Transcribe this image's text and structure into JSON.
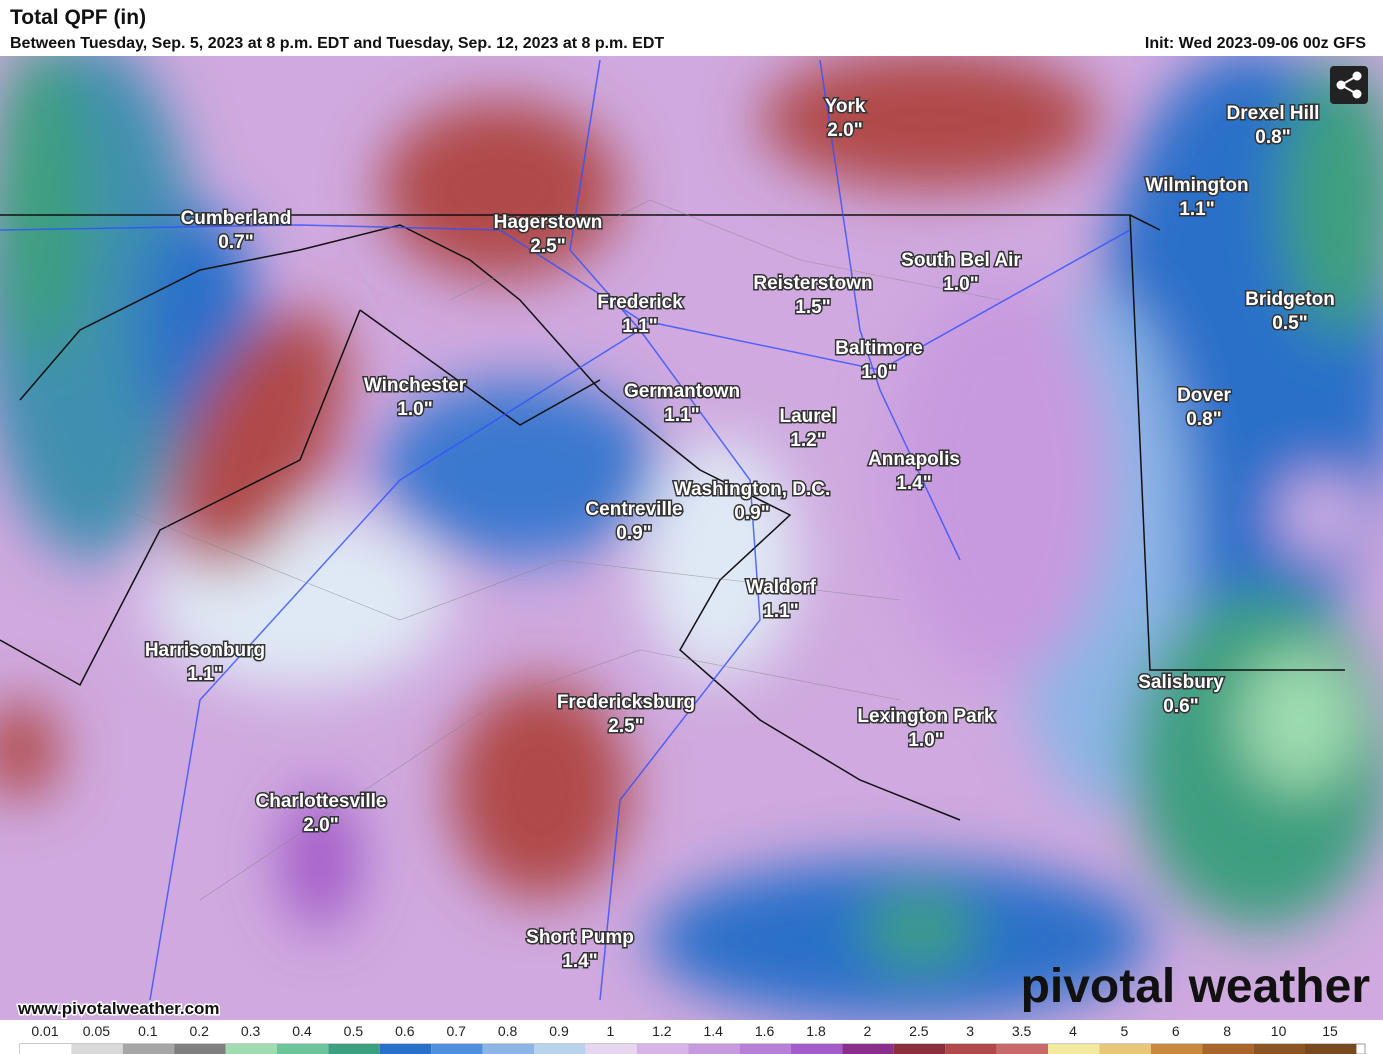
{
  "header": {
    "title": "Total QPF (in)",
    "subtitle": "Between Tuesday, Sep. 5, 2023 at 8 p.m. EDT and Tuesday, Sep. 12, 2023 at 8 p.m. EDT",
    "init": "Init: Wed 2023-09-06 00z GFS"
  },
  "cities": [
    {
      "name": "York",
      "value": "2.0\""
    },
    {
      "name": "Drexel Hill",
      "value": "0.8\""
    },
    {
      "name": "Hagerstown",
      "value": "2.5\""
    },
    {
      "name": "Cumberland",
      "value": "0.7\""
    },
    {
      "name": "Wilmington",
      "value": "1.1\""
    },
    {
      "name": "South Bel Air",
      "value": "1.0\""
    },
    {
      "name": "Reisterstown",
      "value": "1.5\""
    },
    {
      "name": "Frederick",
      "value": "1.1\""
    },
    {
      "name": "Bridgeton",
      "value": "0.5\""
    },
    {
      "name": "Baltimore",
      "value": "1.0\""
    },
    {
      "name": "Winchester",
      "value": "1.0\""
    },
    {
      "name": "Germantown",
      "value": "1.1\""
    },
    {
      "name": "Dover",
      "value": "0.8\""
    },
    {
      "name": "Laurel",
      "value": "1.2\""
    },
    {
      "name": "Annapolis",
      "value": "1.4\""
    },
    {
      "name": "Washington, D.C.",
      "value": "0.9\""
    },
    {
      "name": "Centreville",
      "value": "0.9\""
    },
    {
      "name": "Waldorf",
      "value": "1.1\""
    },
    {
      "name": "Harrisonburg",
      "value": "1.1\""
    },
    {
      "name": "Salisbury",
      "value": "0.6\""
    },
    {
      "name": "Fredericksburg",
      "value": "2.5\""
    },
    {
      "name": "Lexington Park",
      "value": "1.0\""
    },
    {
      "name": "Charlottesville",
      "value": "2.0\""
    },
    {
      "name": "Short Pump",
      "value": "1.4\""
    }
  ],
  "watermark": "pivotal weather",
  "url": "www.pivotalweather.com",
  "legend": {
    "ticks": [
      "0.01",
      "0.05",
      "0.1",
      "0.2",
      "0.3",
      "0.4",
      "0.5",
      "0.6",
      "0.7",
      "0.8",
      "0.9",
      "1",
      "1.2",
      "1.4",
      "1.6",
      "1.8",
      "2",
      "2.5",
      "3",
      "3.5",
      "4",
      "5",
      "6",
      "8",
      "10",
      "15"
    ],
    "colors": [
      "#ffffff",
      "#d9d9d9",
      "#a6a6a6",
      "#7f7f7f",
      "#9fdcb0",
      "#6cc49a",
      "#3c9f7f",
      "#2a6fc9",
      "#4f8fdc",
      "#8cb5e6",
      "#b9d3ef",
      "#e7d6f0",
      "#d7b4e8",
      "#c79adf",
      "#b77fd6",
      "#a35cc8",
      "#8b2f8c",
      "#8b2f3c",
      "#b04a4a",
      "#c96a6a",
      "#f3e9a0",
      "#e8c878",
      "#c98a40",
      "#a8662a",
      "#8a5522",
      "#7a4a1e"
    ]
  }
}
